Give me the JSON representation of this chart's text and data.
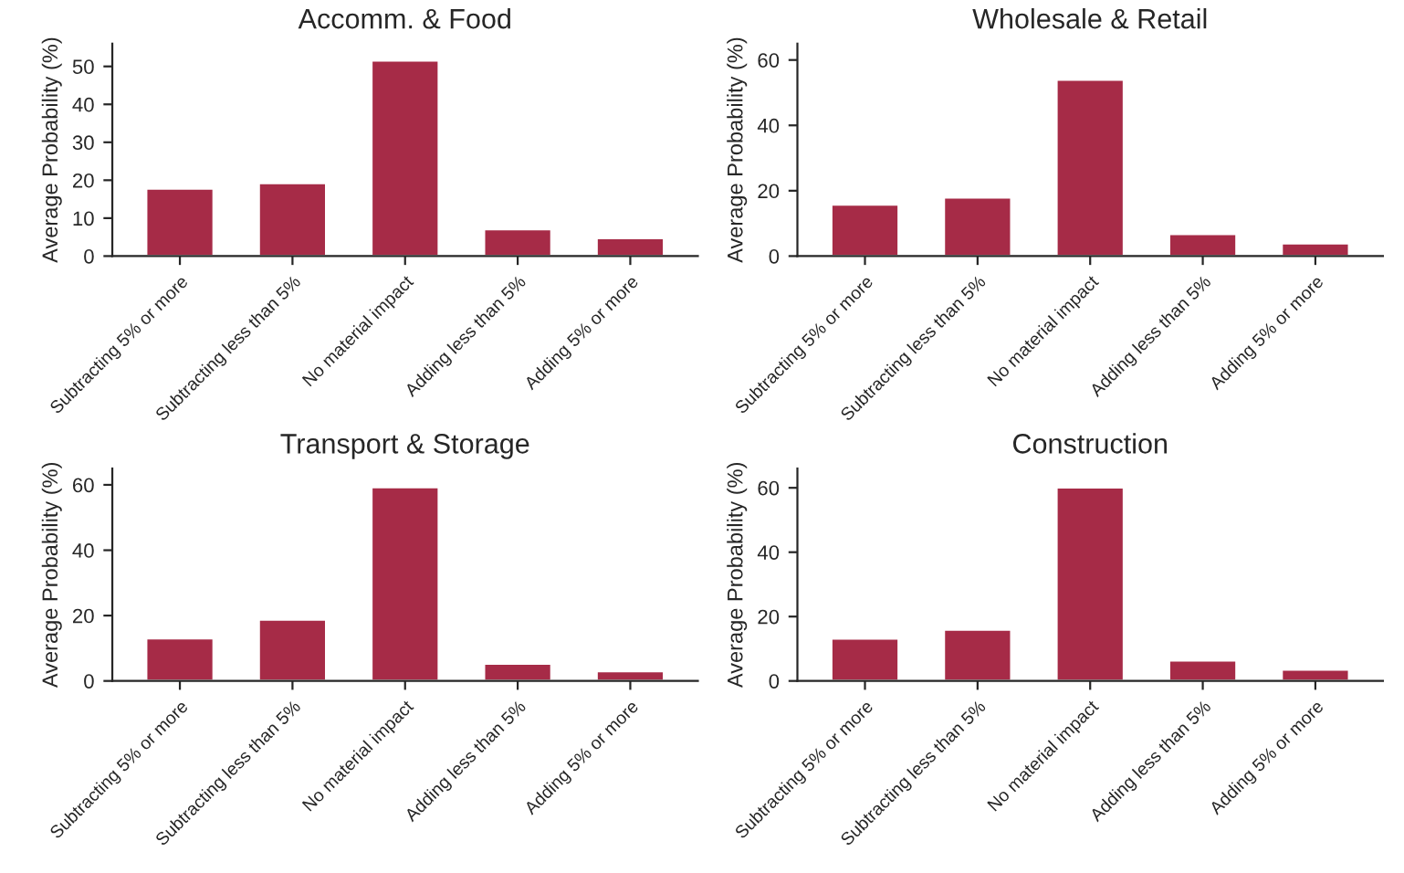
{
  "chart_data": [
    {
      "type": "bar",
      "title": "Accomm. & Food",
      "ylabel": "Average Probability (%)",
      "categories": [
        "Subtracting 5% or more",
        "Subtracting less than 5%",
        "No material impact",
        "Adding less than 5%",
        "Adding 5% or more"
      ],
      "values": [
        17.8,
        19.3,
        51.6,
        7.1,
        4.8
      ],
      "color": "#a62b47",
      "ylim": [
        0,
        56
      ],
      "yticks": [
        0,
        10,
        20,
        30,
        40,
        50
      ],
      "grid": false,
      "legend": false
    },
    {
      "type": "bar",
      "title": "Wholesale & Retail",
      "ylabel": "Average Probability (%)",
      "categories": [
        "Subtracting 5% or more",
        "Subtracting less than 5%",
        "No material impact",
        "Adding less than 5%",
        "Adding 5% or more"
      ],
      "values": [
        15.8,
        18.0,
        54.0,
        6.8,
        3.9
      ],
      "color": "#a62b47",
      "ylim": [
        0,
        65
      ],
      "yticks": [
        0,
        20,
        40,
        60
      ],
      "grid": false,
      "legend": false
    },
    {
      "type": "bar",
      "title": "Transport & Storage",
      "ylabel": "Average Probability (%)",
      "categories": [
        "Subtracting 5% or more",
        "Subtracting less than 5%",
        "No material impact",
        "Adding less than 5%",
        "Adding 5% or more"
      ],
      "values": [
        13.1,
        18.8,
        59.3,
        5.3,
        3.0
      ],
      "color": "#a62b47",
      "ylim": [
        0,
        65
      ],
      "yticks": [
        0,
        20,
        40,
        60
      ],
      "grid": false,
      "legend": false
    },
    {
      "type": "bar",
      "title": "Construction",
      "ylabel": "Average Probability (%)",
      "categories": [
        "Subtracting 5% or more",
        "Subtracting less than 5%",
        "No material impact",
        "Adding less than 5%",
        "Adding 5% or more"
      ],
      "values": [
        13.2,
        16.0,
        60.2,
        6.4,
        3.6
      ],
      "color": "#a62b47",
      "ylim": [
        0,
        66
      ],
      "yticks": [
        0,
        20,
        40,
        60
      ],
      "grid": false,
      "legend": false
    }
  ]
}
